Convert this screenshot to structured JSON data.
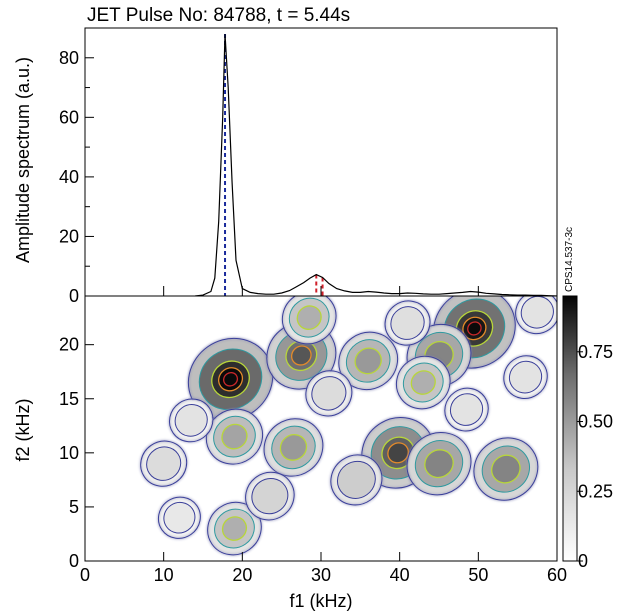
{
  "chart_data": [
    {
      "type": "line",
      "title": "JET Pulse No: 84788, t = 5.44s",
      "ylabel": "Amplitude spectrum (a.u.)",
      "xlim": [
        0,
        60
      ],
      "ylim": [
        0,
        90
      ],
      "yticks": [
        "0",
        "20",
        "40",
        "60",
        "80"
      ],
      "series": [
        {
          "x": [
            14,
            15,
            16,
            16.5,
            17,
            17.5,
            17.8,
            18.2,
            18.7,
            19.2,
            20,
            21,
            22,
            23,
            24,
            25,
            26,
            26.8,
            27.8,
            28.6,
            29.4,
            30.2,
            31,
            32,
            33,
            34,
            35,
            36,
            37,
            38,
            39,
            40,
            41,
            42,
            43,
            44,
            45,
            46,
            47,
            48,
            49,
            50,
            51,
            52,
            53,
            54,
            55,
            56,
            57,
            58,
            59,
            60
          ],
          "y": [
            0,
            0.3,
            1.5,
            6,
            25,
            60,
            88,
            70,
            38,
            12,
            2.5,
            1.2,
            0.8,
            0.6,
            0.6,
            1.0,
            1.8,
            3.0,
            4.5,
            6.0,
            7.2,
            6.2,
            4.2,
            2.5,
            1.7,
            1.2,
            1.2,
            1.5,
            1.3,
            1.0,
            0.8,
            0.8,
            1.0,
            0.9,
            0.7,
            0.6,
            0.6,
            0.8,
            1.0,
            1.2,
            1.5,
            1.3,
            0.9,
            0.7,
            0.5,
            0.4,
            0.3,
            0.3,
            0.2,
            0.2,
            0.1,
            0
          ]
        }
      ],
      "markers": [
        {
          "x": 17.8,
          "color": "#1a2a9c"
        },
        {
          "x": 29.4,
          "color": "#d0202a"
        },
        {
          "x": 30.2,
          "color": "#d0202a"
        }
      ]
    },
    {
      "type": "heatmap",
      "xlabel": "f1 (kHz)",
      "ylabel": "f2 (kHz)",
      "xlim": [
        0,
        60
      ],
      "ylim": [
        0,
        24.5
      ],
      "xticks": [
        "0",
        "10",
        "20",
        "30",
        "40",
        "50",
        "60"
      ],
      "yticks": [
        "0",
        "5",
        "10",
        "15",
        "20"
      ],
      "colorbar": {
        "ticks": [
          "0",
          "0.25",
          "0.50",
          "0.75"
        ],
        "range": [
          0,
          0.95
        ]
      },
      "blobs": [
        {
          "x": 18.5,
          "y": 16.8,
          "value": 0.95
        },
        {
          "x": 49.5,
          "y": 21.5,
          "value": 0.9
        },
        {
          "x": 27.5,
          "y": 19.0,
          "value": 0.65
        },
        {
          "x": 39.8,
          "y": 10.0,
          "value": 0.72
        },
        {
          "x": 45.0,
          "y": 19.0,
          "value": 0.55
        },
        {
          "x": 28.5,
          "y": 22.5,
          "value": 0.35
        },
        {
          "x": 36.0,
          "y": 18.5,
          "value": 0.45
        },
        {
          "x": 43.0,
          "y": 16.5,
          "value": 0.35
        },
        {
          "x": 45.0,
          "y": 9.0,
          "value": 0.55
        },
        {
          "x": 53.5,
          "y": 8.5,
          "value": 0.55
        },
        {
          "x": 26.5,
          "y": 10.5,
          "value": 0.45
        },
        {
          "x": 19.0,
          "y": 11.5,
          "value": 0.4
        },
        {
          "x": 19.0,
          "y": 3.0,
          "value": 0.35
        },
        {
          "x": 34.5,
          "y": 7.5,
          "value": 0.3
        },
        {
          "x": 23.5,
          "y": 6.0,
          "value": 0.25
        },
        {
          "x": 10.0,
          "y": 9.0,
          "value": 0.2
        },
        {
          "x": 13.5,
          "y": 13.0,
          "value": 0.15
        },
        {
          "x": 31.0,
          "y": 15.5,
          "value": 0.2
        },
        {
          "x": 41.0,
          "y": 22.0,
          "value": 0.18
        },
        {
          "x": 56.0,
          "y": 17.0,
          "value": 0.15
        },
        {
          "x": 57.5,
          "y": 23.0,
          "value": 0.15
        },
        {
          "x": 48.5,
          "y": 14.0,
          "value": 0.15
        },
        {
          "x": 12.0,
          "y": 4.0,
          "value": 0.12
        }
      ]
    }
  ],
  "figure_label": "CPS14.537-3c"
}
